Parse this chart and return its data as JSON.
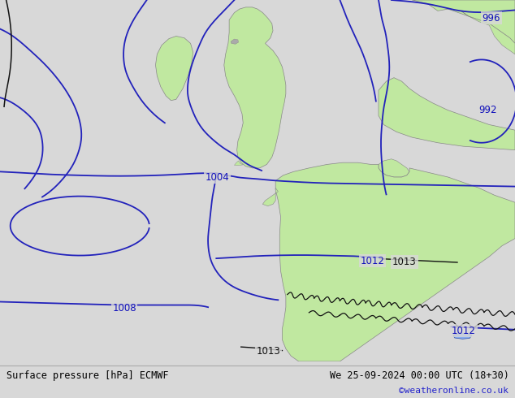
{
  "title_left": "Surface pressure [hPa] ECMWF",
  "title_right": "We 25-09-2024 00:00 UTC (18+30)",
  "copyright": "©weatheronline.co.uk",
  "bg_color": "#d8d8d8",
  "land_color": "#c0e8a0",
  "isobar_color": "#2222bb",
  "mountain_color": "#111111",
  "label_color": "#1111bb",
  "copyright_color": "#2222cc",
  "figsize": [
    6.34,
    4.9
  ],
  "dpi": 100
}
